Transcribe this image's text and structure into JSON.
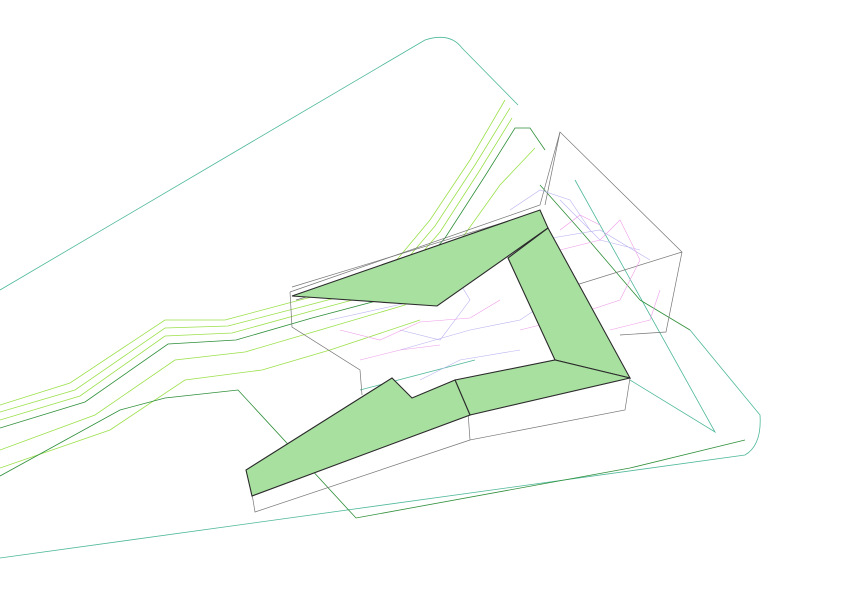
{
  "view": {
    "type": "axonometric-wireframe",
    "background": "#ffffff"
  },
  "colors": {
    "site_boundary": "#4fb89a",
    "terrain_contour_light": "#9be04a",
    "terrain_contour_dark": "#3fa82e",
    "roof_fill": "#a8e0a0",
    "roof_stroke": "#2b2b2b",
    "building_edge": "#777777",
    "interior_blue": "#b9b3f0",
    "interior_pink": "#ef9be8",
    "site_dark_green": "#2f8f3a"
  },
  "layers": [
    {
      "name": "site-boundary",
      "color_key": "site_boundary"
    },
    {
      "name": "terrain-contours",
      "color_key": "terrain_contour_light"
    },
    {
      "name": "building-massing",
      "color_key": "building_edge"
    },
    {
      "name": "roof-surfaces",
      "color_key": "roof_fill"
    },
    {
      "name": "interior-lines",
      "color_key": "interior_blue"
    }
  ]
}
